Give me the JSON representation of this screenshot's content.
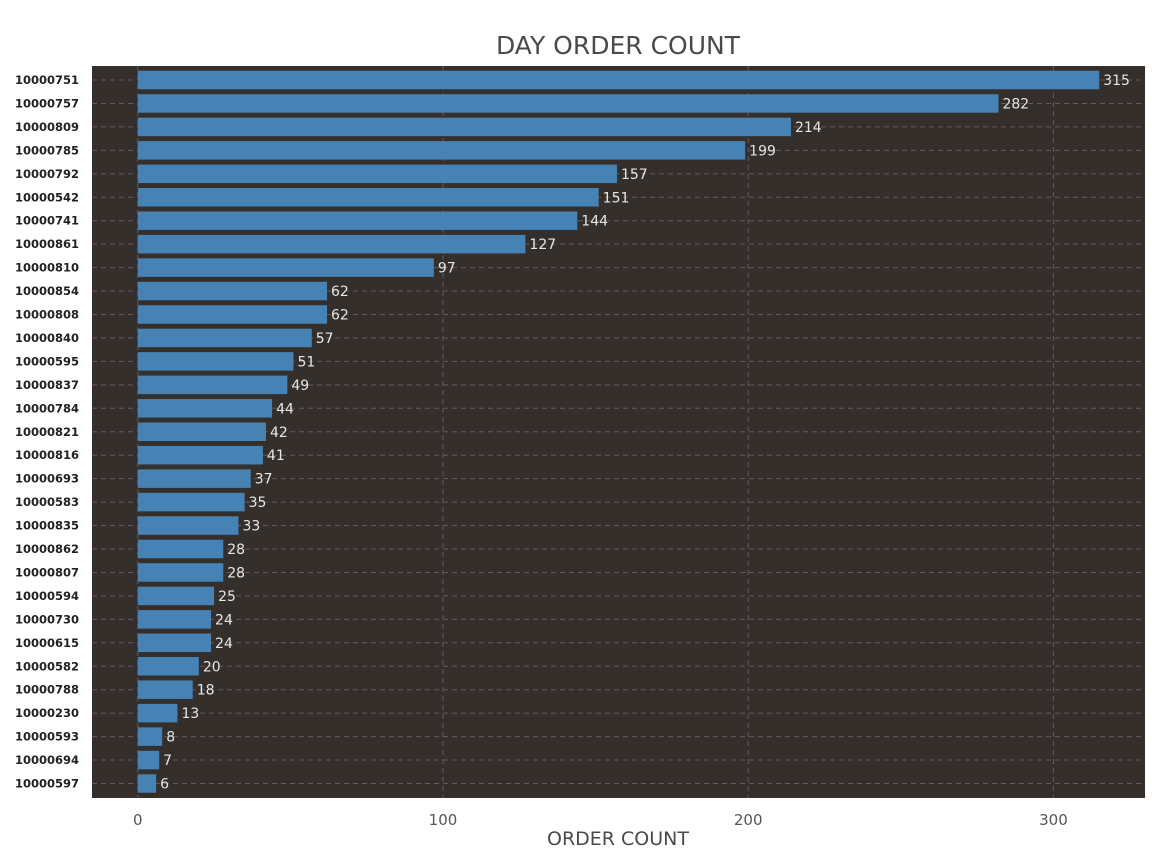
{
  "chart_data": {
    "type": "bar",
    "orientation": "horizontal",
    "title": "DAY ORDER COUNT",
    "xlabel": "ORDER COUNT",
    "ylabel": "",
    "xlim": [
      -15,
      330
    ],
    "xticks": [
      0,
      100,
      200,
      300
    ],
    "grid": true,
    "colors": {
      "plot_background": "#352f2c",
      "bar": "#4682b4",
      "grid": "#6b5560",
      "value_label": "#e6e6e6"
    },
    "categories": [
      "10000751",
      "10000757",
      "10000809",
      "10000785",
      "10000792",
      "10000542",
      "10000741",
      "10000861",
      "10000810",
      "10000854",
      "10000808",
      "10000840",
      "10000595",
      "10000837",
      "10000784",
      "10000821",
      "10000816",
      "10000693",
      "10000583",
      "10000835",
      "10000862",
      "10000807",
      "10000594",
      "10000730",
      "10000615",
      "10000582",
      "10000788",
      "10000230",
      "10000593",
      "10000694",
      "10000597"
    ],
    "values": [
      315,
      282,
      214,
      199,
      157,
      151,
      144,
      127,
      97,
      62,
      62,
      57,
      51,
      49,
      44,
      42,
      41,
      37,
      35,
      33,
      28,
      28,
      25,
      24,
      24,
      20,
      18,
      13,
      8,
      7,
      6
    ]
  }
}
